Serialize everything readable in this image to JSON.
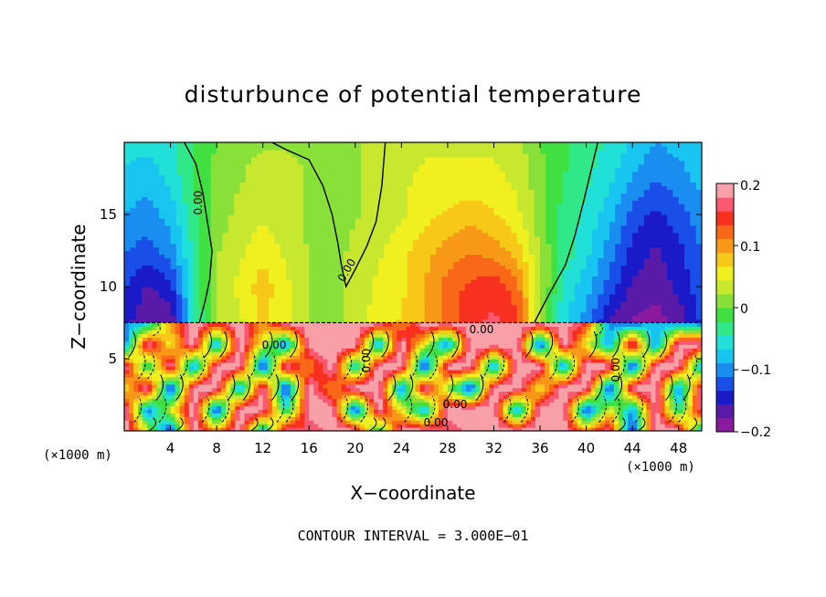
{
  "chart_data": {
    "type": "heatmap",
    "title": "disturbunce of potential temperature",
    "xlabel": "X−coordinate",
    "ylabel": "Z−coordinate",
    "x_unit_left": "(×1000 m)",
    "x_unit_right": "(×1000 m)",
    "footer": "CONTOUR INTERVAL = 3.000E−01",
    "xlim": [
      0,
      50
    ],
    "ylim": [
      0,
      20
    ],
    "x_ticks": [
      "4",
      "8",
      "12",
      "16",
      "20",
      "24",
      "28",
      "32",
      "36",
      "40",
      "44",
      "48"
    ],
    "y_ticks": [
      "5",
      "10",
      "15"
    ],
    "colorbar": {
      "range": [
        -0.2,
        0.2
      ],
      "tick_labels": [
        "0.2",
        "0.1",
        "0",
        "−0.1",
        "−0.2"
      ],
      "colors": [
        "#8b1a9e",
        "#5a1aa8",
        "#1a1ac8",
        "#1a4ee8",
        "#1a8ef0",
        "#18c4f0",
        "#20e0d8",
        "#30e888",
        "#40e040",
        "#88e038",
        "#c8e830",
        "#f0f020",
        "#f8c818",
        "#f89818",
        "#f86818",
        "#f83020",
        "#f85870",
        "#f8a0a8"
      ]
    },
    "contour_labels": [
      "0.00",
      "0.00",
      "0.00",
      "0.00",
      "0.00",
      "0.00",
      "0.00",
      "0.00"
    ],
    "upper_field": {
      "x": [
        0,
        2,
        4,
        6,
        8,
        10,
        12,
        14,
        16,
        18,
        20,
        22,
        24,
        26,
        28,
        30,
        32,
        34,
        36,
        38,
        40,
        42,
        44,
        46,
        48,
        50
      ],
      "z": [
        7.5,
        10,
        12.5,
        15,
        17.5,
        20
      ],
      "values": [
        [
          -0.15,
          -0.17,
          -0.18,
          -0.05,
          0.02,
          0.04,
          0.07,
          0.05,
          0.02,
          0.0,
          0.04,
          0.05,
          0.07,
          0.09,
          0.12,
          0.15,
          0.16,
          0.14,
          0.02,
          -0.06,
          -0.1,
          -0.16,
          -0.18,
          -0.19,
          -0.17,
          -0.13
        ],
        [
          -0.13,
          -0.16,
          -0.14,
          -0.05,
          0.03,
          0.05,
          0.08,
          0.05,
          0.02,
          0.01,
          0.03,
          0.05,
          0.06,
          0.09,
          0.12,
          0.14,
          0.15,
          0.12,
          0.03,
          -0.05,
          -0.08,
          -0.12,
          -0.16,
          -0.17,
          -0.15,
          -0.12
        ],
        [
          -0.11,
          -0.12,
          -0.1,
          -0.04,
          0.02,
          0.04,
          0.06,
          0.04,
          0.02,
          0.01,
          0.03,
          0.04,
          0.06,
          0.08,
          0.1,
          0.11,
          0.1,
          0.08,
          0.02,
          -0.03,
          -0.06,
          -0.1,
          -0.14,
          -0.16,
          -0.14,
          -0.11
        ],
        [
          -0.09,
          -0.1,
          -0.08,
          -0.03,
          0.01,
          0.03,
          0.04,
          0.03,
          0.02,
          0.01,
          0.02,
          0.03,
          0.04,
          0.06,
          0.07,
          0.08,
          0.07,
          0.05,
          0.01,
          -0.03,
          -0.05,
          -0.08,
          -0.12,
          -0.14,
          -0.12,
          -0.1
        ],
        [
          -0.07,
          -0.08,
          -0.06,
          -0.02,
          0.01,
          0.02,
          0.03,
          0.03,
          0.02,
          0.01,
          0.02,
          0.03,
          0.04,
          0.05,
          0.05,
          0.05,
          0.05,
          0.04,
          0.01,
          -0.02,
          -0.04,
          -0.06,
          -0.09,
          -0.11,
          -0.1,
          -0.08
        ],
        [
          -0.06,
          -0.06,
          -0.05,
          -0.02,
          0.0,
          0.02,
          0.02,
          0.02,
          0.02,
          0.01,
          0.02,
          0.03,
          0.03,
          0.04,
          0.04,
          0.04,
          0.04,
          0.03,
          0.0,
          -0.02,
          -0.03,
          -0.05,
          -0.07,
          -0.09,
          -0.08,
          -0.07
        ]
      ]
    },
    "lower_field": {
      "x": [
        0,
        2,
        4,
        6,
        8,
        10,
        12,
        14,
        16,
        18,
        20,
        22,
        24,
        26,
        28,
        30,
        32,
        34,
        36,
        38,
        40,
        42,
        44,
        46,
        48,
        50
      ],
      "z": [
        0,
        1.5,
        3,
        4.5,
        6,
        7.5
      ],
      "values": [
        [
          0.2,
          0.05,
          -0.15,
          0.2,
          0.1,
          0.2,
          -0.1,
          0.2,
          0.15,
          0.2,
          0.2,
          -0.05,
          0.2,
          0.2,
          0.15,
          0.2,
          0.2,
          0.2,
          0.2,
          0.2,
          0.1,
          0.2,
          -0.15,
          0.2,
          0.2,
          -0.1
        ],
        [
          0.2,
          -0.12,
          0.05,
          0.2,
          -0.15,
          0.2,
          0.2,
          -0.05,
          0.2,
          0.2,
          -0.15,
          0.2,
          0.05,
          -0.1,
          0.2,
          0.2,
          0.2,
          -0.12,
          0.2,
          0.2,
          -0.15,
          0.05,
          -0.1,
          0.2,
          -0.05,
          0.2
        ],
        [
          0.05,
          0.2,
          -0.15,
          0.2,
          0.2,
          -0.1,
          0.2,
          -0.15,
          0.2,
          0.1,
          0.2,
          0.2,
          -0.12,
          0.2,
          0.02,
          -0.15,
          0.2,
          0.2,
          0.05,
          0.2,
          0.2,
          -0.15,
          0.2,
          0.2,
          -0.12,
          0.2
        ],
        [
          0.2,
          -0.05,
          0.2,
          -0.12,
          0.2,
          0.2,
          -0.15,
          0.2,
          0.1,
          0.2,
          -0.08,
          0.2,
          0.2,
          -0.15,
          0.2,
          0.2,
          -0.1,
          0.2,
          0.2,
          -0.12,
          0.2,
          0.2,
          -0.15,
          0.2,
          0.2,
          -0.1
        ],
        [
          -0.12,
          0.2,
          0.05,
          0.2,
          -0.1,
          0.2,
          0.05,
          -0.12,
          0.2,
          0.2,
          0.2,
          -0.1,
          0.2,
          0.05,
          -0.12,
          0.2,
          0.2,
          0.2,
          -0.15,
          0.2,
          0.05,
          -0.1,
          0.2,
          -0.12,
          0.2,
          0.2
        ],
        [
          -0.1,
          -0.08,
          0.1,
          0.2,
          0.15,
          0.2,
          0.1,
          0.2,
          0.2,
          0.2,
          0.2,
          0.2,
          0.1,
          0.2,
          0.2,
          0.2,
          0.2,
          0.2,
          0.2,
          0.2,
          0.15,
          -0.1,
          -0.12,
          -0.08,
          -0.1,
          -0.12
        ]
      ]
    },
    "zero_contours": {
      "left": {
        "x": [
          6.5,
          7.0,
          7.4,
          7.6,
          7.2,
          6.8,
          6.2,
          5.2
        ],
        "z": [
          7.5,
          9.0,
          10.5,
          12.5,
          14.5,
          16.5,
          18.5,
          20
        ]
      },
      "middle": {
        "x": [
          12.8,
          14.0,
          16.0,
          17.2,
          18.0,
          18.5,
          18.8,
          19.2,
          20.0,
          21.0,
          21.8,
          22.3,
          22.6
        ],
        "z": [
          20,
          19.5,
          18.8,
          17.0,
          15.0,
          13.0,
          11.5,
          10.0,
          11.2,
          12.8,
          14.5,
          17.0,
          20
        ]
      },
      "right": {
        "x": [
          35.5,
          36.8,
          38.2,
          39.0,
          39.8,
          40.4,
          41.0
        ],
        "z": [
          7.5,
          9.5,
          11.5,
          13.5,
          16.0,
          18.0,
          20
        ]
      }
    }
  }
}
